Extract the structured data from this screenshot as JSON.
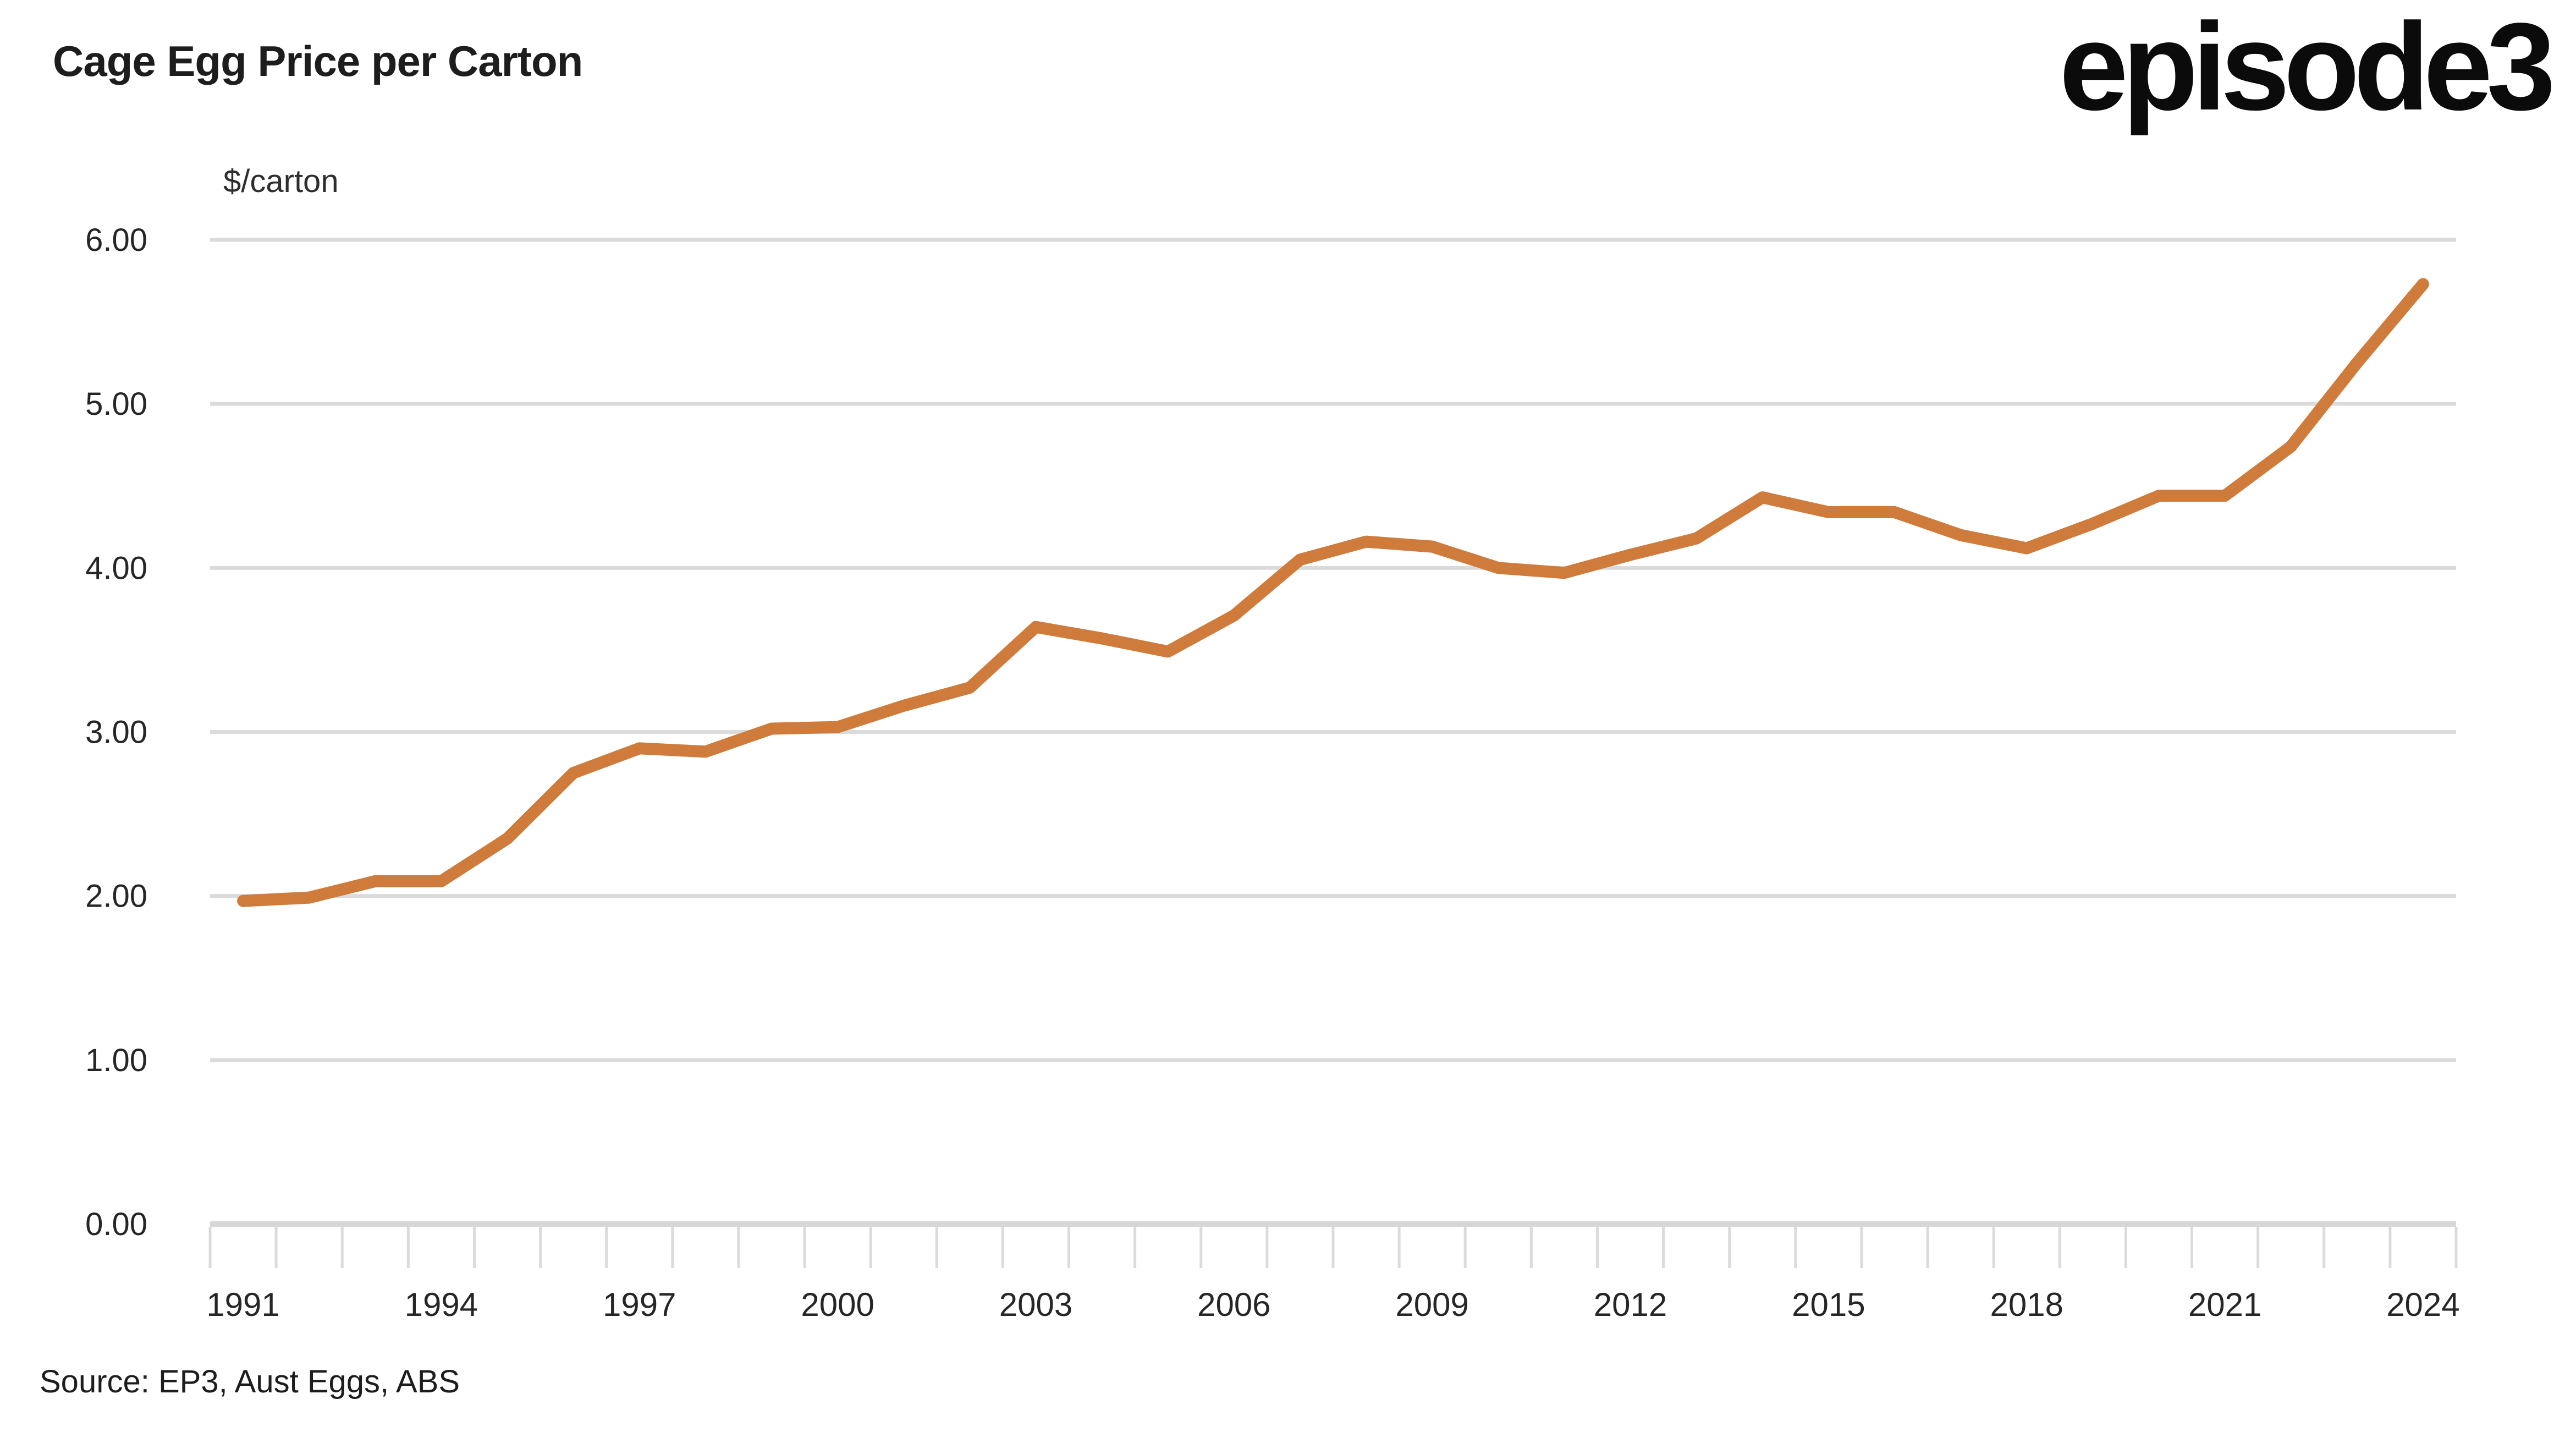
{
  "page": {
    "title": "Cage Egg Price per Carton",
    "logo_text": "episode3",
    "source_caption": "Source: EP3, Aust Eggs, ABS"
  },
  "chart_data": {
    "type": "line",
    "title": "Cage Egg Price per Carton",
    "unit_label": "$/carton",
    "xlabel": "",
    "ylabel": "$/carton",
    "ylim": [
      0,
      6
    ],
    "grid": "horizontal",
    "legend_position": "none",
    "x": [
      1991,
      1992,
      1993,
      1994,
      1995,
      1996,
      1997,
      1998,
      1999,
      2000,
      2001,
      2002,
      2003,
      2004,
      2005,
      2006,
      2007,
      2008,
      2009,
      2010,
      2011,
      2012,
      2013,
      2014,
      2015,
      2016,
      2017,
      2018,
      2019,
      2020,
      2021,
      2022,
      2023,
      2024
    ],
    "series": [
      {
        "name": "Cage egg price per carton",
        "values": [
          1.97,
          1.99,
          2.09,
          2.09,
          2.35,
          2.75,
          2.9,
          2.88,
          3.02,
          3.03,
          3.16,
          3.27,
          3.64,
          3.57,
          3.49,
          3.71,
          4.05,
          4.16,
          4.13,
          4.0,
          3.97,
          4.08,
          4.18,
          4.43,
          4.34,
          4.34,
          4.2,
          4.12,
          4.27,
          4.44,
          4.44,
          4.74,
          5.25,
          5.73
        ]
      }
    ],
    "y_ticks": [
      0,
      1,
      2,
      3,
      4,
      5,
      6
    ],
    "y_tick_labels": [
      "0.00",
      "1.00",
      "2.00",
      "3.00",
      "4.00",
      "5.00",
      "6.00"
    ],
    "x_tick_labels": [
      1991,
      1994,
      1997,
      2000,
      2003,
      2006,
      2009,
      2012,
      2015,
      2018,
      2021,
      2024
    ],
    "colors": {
      "line": "#CF7B3C",
      "gridline": "#DBDBDB",
      "axis": "#D7D7D7",
      "tick": "#DBDBDB",
      "text": "#262626"
    }
  }
}
